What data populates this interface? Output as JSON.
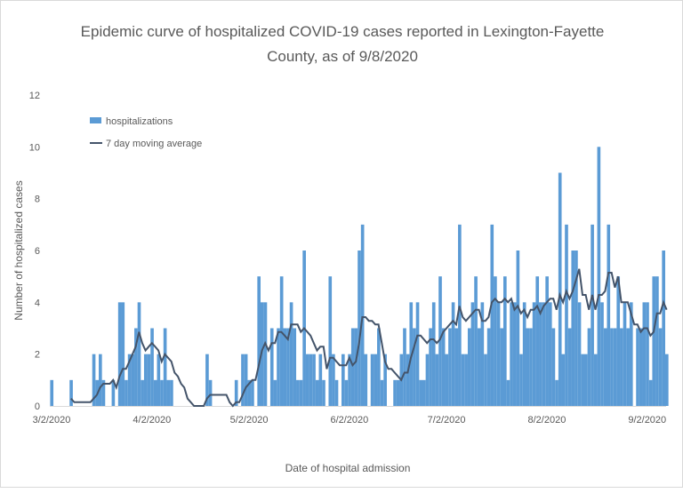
{
  "chart_data": {
    "type": "bar",
    "title_line1": "Epidemic curve of hospitalized COVID-19 cases reported in Lexington-Fayette",
    "title_line2": "County, as of 9/8/2020",
    "xlabel": "Date of hospital admission",
    "ylabel": "Number of hospitalized cases",
    "ylim": [
      0,
      12
    ],
    "yticks": [
      "0",
      "2",
      "4",
      "6",
      "8",
      "10",
      "12"
    ],
    "xticks": [
      {
        "label": "3/2/2020",
        "day": 0
      },
      {
        "label": "4/2/2020",
        "day": 31
      },
      {
        "label": "5/2/2020",
        "day": 61
      },
      {
        "label": "6/2/2020",
        "day": 92
      },
      {
        "label": "7/2/2020",
        "day": 122
      },
      {
        "label": "8/2/2020",
        "day": 153
      },
      {
        "label": "9/2/2020",
        "day": 184
      }
    ],
    "start_date": "3/2/2020",
    "end_date": "9/8/2020",
    "legend": {
      "position": "top-left",
      "bar_label": "hospitalizations",
      "line_label": "7 day moving average"
    },
    "colors": {
      "bar": "#5b9bd5",
      "line": "#44546a"
    },
    "series": [
      {
        "name": "hospitalizations",
        "type": "bar",
        "values": [
          1,
          0,
          0,
          0,
          0,
          0,
          1,
          0,
          0,
          0,
          0,
          0,
          0,
          2,
          1,
          2,
          1,
          0,
          0,
          1,
          0,
          4,
          4,
          1,
          2,
          2,
          3,
          4,
          1,
          2,
          2,
          3,
          1,
          2,
          1,
          3,
          1,
          1,
          0,
          0,
          0,
          0,
          0,
          0,
          0,
          0,
          0,
          0,
          2,
          1,
          0,
          0,
          0,
          0,
          0,
          0,
          0,
          1,
          0,
          2,
          2,
          1,
          1,
          0,
          5,
          4,
          4,
          0,
          3,
          1,
          3,
          5,
          3,
          3,
          4,
          3,
          1,
          1,
          6,
          2,
          2,
          2,
          1,
          2,
          1,
          0,
          5,
          2,
          1,
          0,
          2,
          1,
          2,
          3,
          3,
          6,
          7,
          2,
          0,
          2,
          2,
          3,
          1,
          2,
          0,
          0,
          1,
          1,
          2,
          3,
          2,
          4,
          3,
          4,
          1,
          1,
          2,
          3,
          4,
          2,
          5,
          3,
          2,
          3,
          4,
          3,
          7,
          2,
          2,
          3,
          4,
          5,
          3,
          4,
          2,
          3,
          7,
          5,
          4,
          3,
          5,
          1,
          4,
          4,
          6,
          2,
          4,
          3,
          3,
          4,
          5,
          4,
          4,
          5,
          4,
          3,
          1,
          9,
          2,
          7,
          3,
          6,
          6,
          4,
          2,
          2,
          3,
          7,
          2,
          10,
          4,
          3,
          7,
          3,
          3,
          5,
          3,
          4,
          3,
          4,
          0,
          3,
          3,
          4,
          4,
          1,
          5,
          5,
          3,
          6,
          2
        ]
      },
      {
        "name": "7 day moving average",
        "type": "line",
        "window": 7
      }
    ]
  }
}
